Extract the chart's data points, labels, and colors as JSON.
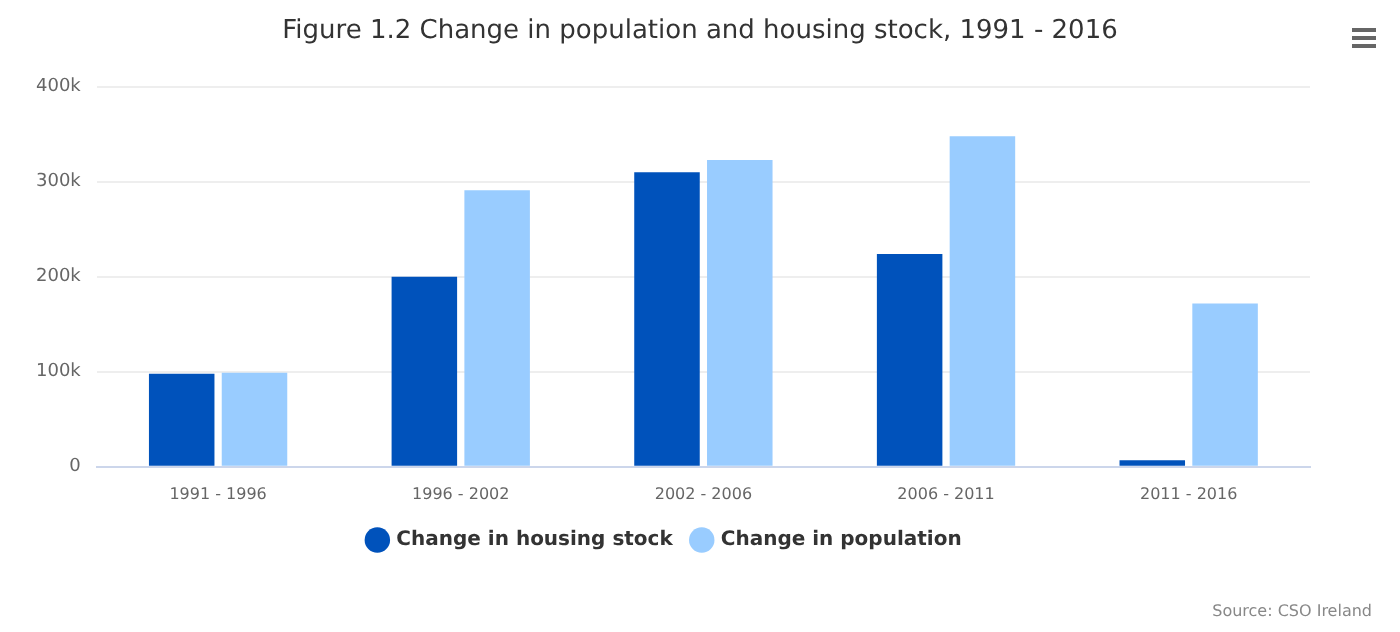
{
  "chart_data": {
    "type": "bar",
    "title": "Figure 1.2 Change in population and housing stock, 1991 - 2016",
    "categories": [
      "1991 - 1996",
      "1996 - 2002",
      "2002 - 2006",
      "2006 - 2011",
      "2011 - 2016"
    ],
    "series": [
      {
        "name": "Change in housing stock",
        "color": "#0052bb",
        "values": [
          98000,
          200000,
          310000,
          224000,
          7000
        ]
      },
      {
        "name": "Change in population",
        "color": "#99ccff",
        "values": [
          99000,
          291000,
          323000,
          348000,
          172000
        ]
      }
    ],
    "ylim": [
      0,
      400000
    ],
    "yticks": [
      {
        "value": 0,
        "label": "0"
      },
      {
        "value": 100000,
        "label": "100k"
      },
      {
        "value": 200000,
        "label": "200k"
      },
      {
        "value": 300000,
        "label": "300k"
      },
      {
        "value": 400000,
        "label": "400k"
      }
    ],
    "grid": "y",
    "legend": "bottom",
    "annotations": [
      "Source: CSO Ireland"
    ]
  }
}
